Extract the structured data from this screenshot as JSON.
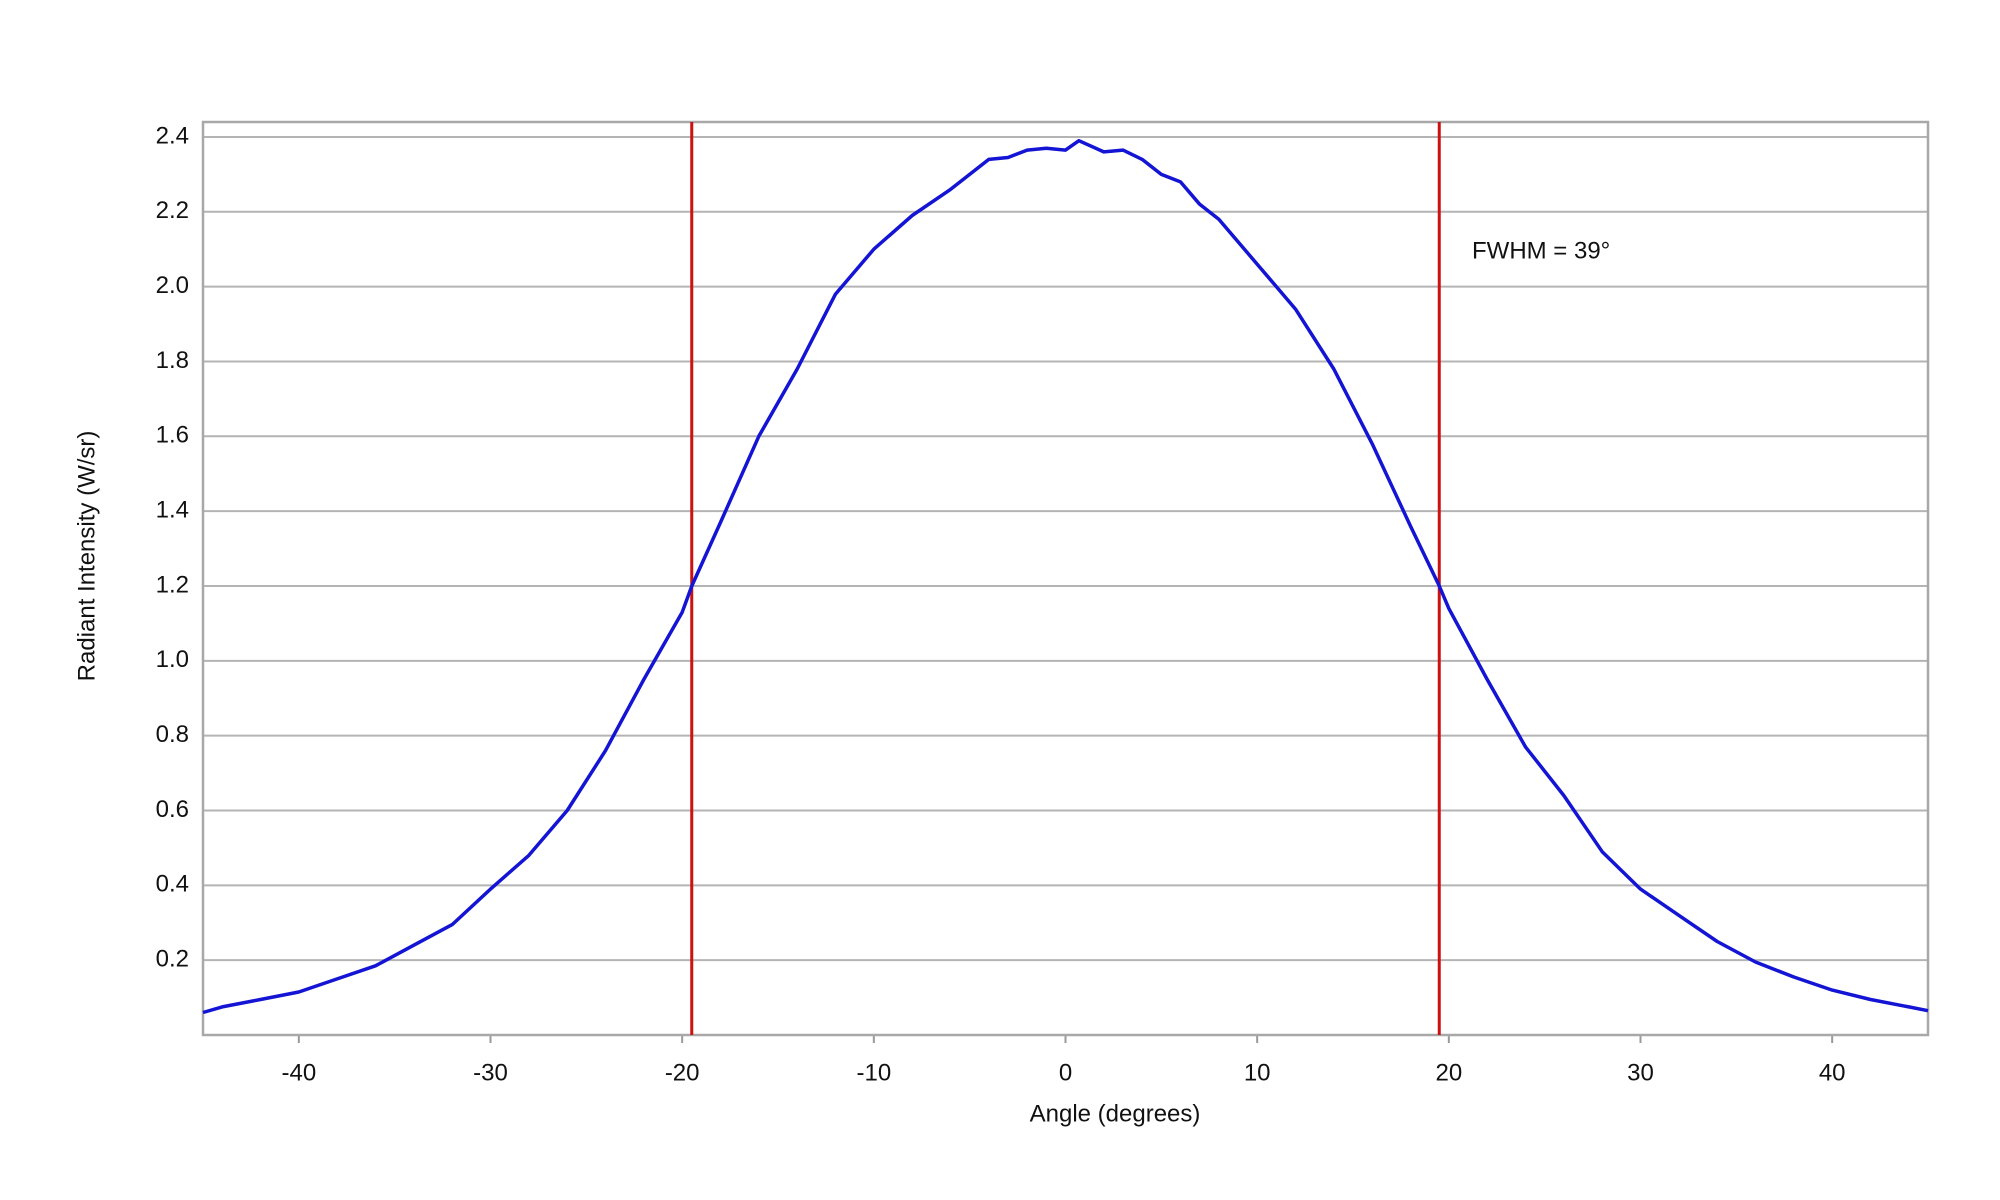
{
  "chart_data": {
    "type": "line",
    "x_label": "Angle (degrees)",
    "y_label": "Radiant Intensity (W/sr)",
    "annotation": "FWHM = 39°",
    "xlim": [
      -45,
      45
    ],
    "ylim": [
      0,
      2.44
    ],
    "xticks": [
      -40,
      -30,
      -20,
      -10,
      0,
      10,
      20,
      30,
      40
    ],
    "yticks": [
      0.2,
      0.4,
      0.6,
      0.8,
      {
        "value": 1.0,
        "label": "1.0"
      },
      1.2,
      1.4,
      1.6,
      1.8,
      {
        "value": 2.0,
        "label": "2.0"
      },
      2.2,
      2.4
    ],
    "grid": true,
    "vlines": [
      -19.5,
      19.5
    ],
    "vline_color": "#cc1111",
    "series": [
      {
        "color": "#1414d4",
        "x": [
          -45,
          -44,
          -42,
          -40,
          -38,
          -36,
          -34,
          -32,
          -30,
          -28,
          -26,
          -24,
          -22,
          -20,
          -19.5,
          -18,
          -16,
          -14,
          -12,
          -10,
          -8,
          -6,
          -4,
          -3,
          -2,
          -1,
          0,
          0.7,
          2,
          3,
          4,
          5,
          6,
          7,
          8,
          10,
          12,
          14,
          16,
          18,
          19.5,
          20,
          22,
          24,
          26,
          28,
          30,
          32,
          34,
          36,
          38,
          40,
          42,
          44,
          45
        ],
        "values": [
          0.06,
          0.075,
          0.095,
          0.115,
          0.15,
          0.185,
          0.24,
          0.295,
          0.39,
          0.48,
          0.6,
          0.76,
          0.95,
          1.13,
          1.2,
          1.37,
          1.6,
          1.78,
          1.98,
          2.1,
          2.19,
          2.26,
          2.34,
          2.345,
          2.365,
          2.37,
          2.365,
          2.39,
          2.36,
          2.365,
          2.34,
          2.3,
          2.28,
          2.22,
          2.18,
          2.06,
          1.94,
          1.78,
          1.58,
          1.36,
          1.2,
          1.14,
          0.95,
          0.77,
          0.64,
          0.49,
          0.39,
          0.32,
          0.25,
          0.195,
          0.155,
          0.12,
          0.095,
          0.075,
          0.065
        ]
      }
    ]
  }
}
